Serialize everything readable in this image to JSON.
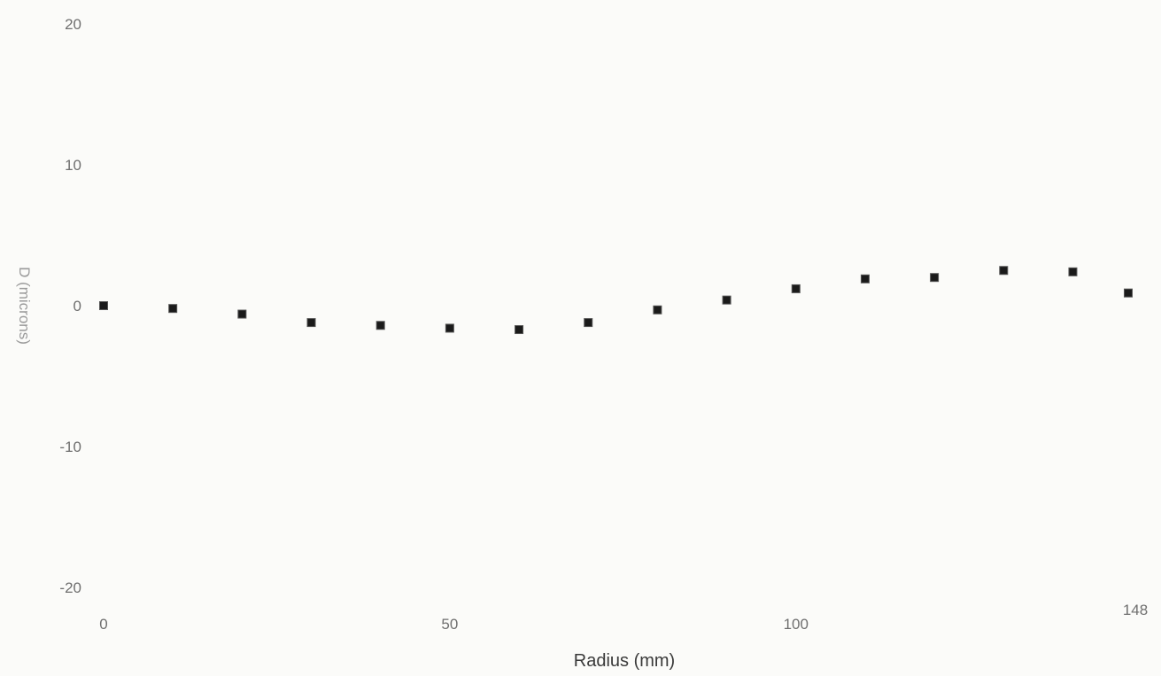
{
  "chart_data": {
    "type": "scatter",
    "title": "",
    "xlabel": "Radius (mm)",
    "ylabel": "D (microns)",
    "xlim": [
      0,
      148
    ],
    "ylim": [
      -20,
      20
    ],
    "x_ticks": [
      {
        "value": 0,
        "label": "0"
      },
      {
        "value": 50,
        "label": "50"
      },
      {
        "value": 100,
        "label": "100"
      },
      {
        "value": 148,
        "label": "148"
      }
    ],
    "y_ticks": [
      {
        "value": 20,
        "label": "20"
      },
      {
        "value": 10,
        "label": "10"
      },
      {
        "value": 0,
        "label": "0"
      },
      {
        "value": -10,
        "label": "-10"
      },
      {
        "value": -20,
        "label": "-20"
      }
    ],
    "grid": false,
    "legend": "none",
    "marker_color": "#1a1a1a",
    "series": [
      {
        "x": [
          0,
          10,
          20,
          30,
          40,
          50,
          60,
          70,
          80,
          90,
          100,
          110,
          120,
          130,
          140,
          148
        ],
        "y": [
          0,
          -0.2,
          -0.6,
          -1.2,
          -1.4,
          -1.6,
          -1.7,
          -1.2,
          -0.3,
          0.4,
          1.2,
          1.9,
          2.0,
          2.5,
          2.4,
          0.9
        ]
      }
    ]
  }
}
